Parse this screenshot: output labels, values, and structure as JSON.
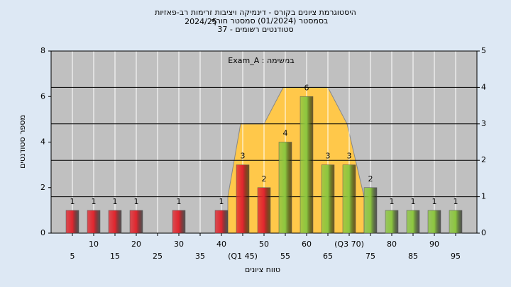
{
  "chart_data": {
    "type": "histogram",
    "title": [
      "היסטוגרמת ציונים בקורס - דינמיקה ויציבות זרימות רב-פאזיות",
      "בסמסטר  (01/2024)  סמסטר חורף",
      "2024/25",
      "סטודנטים רשומים - 37"
    ],
    "annotation": "במשימה : Exam_A",
    "x_label": "טווח ציונים",
    "y_label": "מספר סטודנטים",
    "x": [
      5,
      10,
      15,
      20,
      25,
      30,
      35,
      40,
      45,
      50,
      55,
      60,
      65,
      70,
      75,
      80,
      85,
      90,
      95
    ],
    "values": [
      1,
      1,
      1,
      1,
      0,
      1,
      0,
      1,
      3,
      2,
      4,
      6,
      3,
      3,
      2,
      1,
      1,
      1,
      1
    ],
    "colors": [
      "#e0262e",
      "#e0262e",
      "#e0262e",
      "#e0262e",
      "#e0262e",
      "#e0262e",
      "#e0262e",
      "#e0262e",
      "#e0262e",
      "#e0262e",
      "#8cc63f",
      "#8cc63f",
      "#8cc63f",
      "#8cc63f",
      "#8cc63f",
      "#8cc63f",
      "#8cc63f",
      "#8cc63f",
      "#8cc63f"
    ],
    "xlim": [
      0,
      100
    ],
    "xticks": [
      5,
      10,
      15,
      20,
      25,
      30,
      35,
      40,
      {
        "value": 45,
        "label": "(Q1 45)"
      },
      50,
      55,
      60,
      65,
      {
        "value": 70,
        "label": "(Q3 70)"
      },
      75,
      80,
      85,
      90,
      95
    ],
    "ylim": [
      0,
      8
    ],
    "yticks": [
      0,
      2,
      4,
      6,
      8
    ],
    "y2lim": [
      0,
      5
    ],
    "y2ticks": [
      0,
      1,
      2,
      3,
      4,
      5
    ],
    "area": {
      "axis": "y2",
      "color": "#ffc84a",
      "x": [
        41.5,
        44.5,
        50,
        54.5,
        60,
        65,
        69.5,
        73.5
      ],
      "values": [
        1,
        3,
        3,
        4,
        4,
        4,
        3,
        1
      ]
    },
    "grid": true
  }
}
